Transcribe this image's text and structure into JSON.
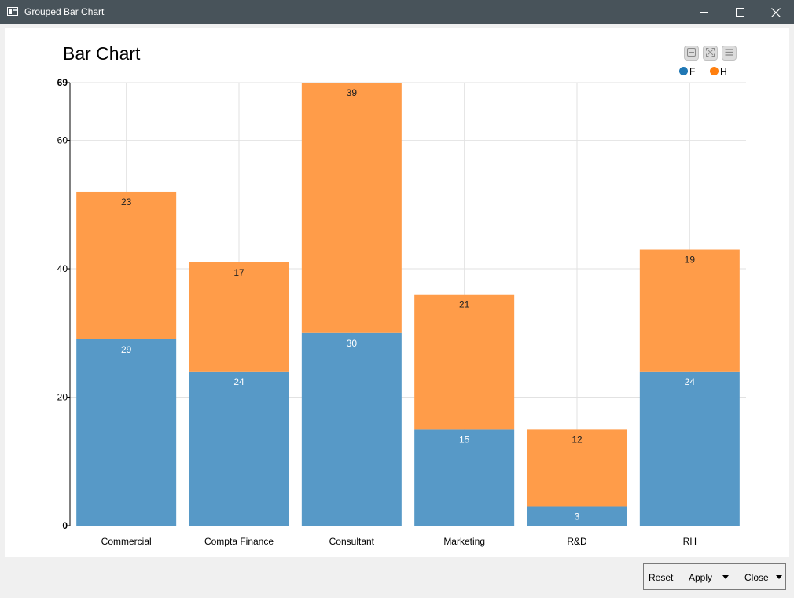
{
  "window": {
    "title": "Grouped Bar Chart",
    "icons": [
      "app-window-icon",
      "minimize-icon",
      "maximize-icon",
      "close-icon"
    ]
  },
  "toolbar": {
    "icons": [
      "collapse-icon",
      "fullscreen-icon",
      "menu-icon"
    ]
  },
  "footer": {
    "reset_label": "Reset",
    "apply_label": "Apply",
    "close_label": "Close"
  },
  "colors": {
    "F": "#5799c7",
    "H": "#ff9c49",
    "legend_F": "#1f77b4",
    "legend_H": "#ff7f0e",
    "grid": "#e2e2e2"
  },
  "chart_data": {
    "type": "bar",
    "stacked": true,
    "title": "Bar Chart",
    "xlabel": "",
    "ylabel": "",
    "categories": [
      "Commercial",
      "Compta Finance",
      "Consultant",
      "Marketing",
      "R&D",
      "RH"
    ],
    "series": [
      {
        "name": "F",
        "values": [
          29,
          24,
          30,
          15,
          3,
          24
        ]
      },
      {
        "name": "H",
        "values": [
          23,
          17,
          39,
          21,
          12,
          19
        ]
      }
    ],
    "ylim": [
      0,
      69
    ],
    "yticks": [
      0,
      20,
      40,
      60,
      69
    ],
    "grid": true,
    "legend_position": "top-right",
    "data_labels": true
  }
}
